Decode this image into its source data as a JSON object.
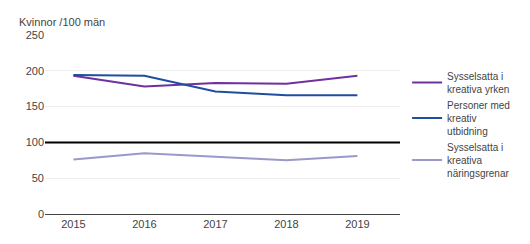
{
  "chart_data": {
    "type": "line",
    "ylabel": "Kvinnor /100 män",
    "x": [
      2015,
      2016,
      2017,
      2018,
      2019
    ],
    "series": [
      {
        "name": "Sysselsatta i\nkreativa yrken",
        "color": "#7030A0",
        "values": [
          193,
          178,
          183,
          182,
          193
        ]
      },
      {
        "name": "Personer med\nkreativ\nutbidning",
        "color": "#1F4E9E",
        "values": [
          194,
          193,
          171,
          166,
          166
        ]
      },
      {
        "name": "Sysselsatta i\nkreativa\nnäringsgrenar",
        "color": "#9999CC",
        "values": [
          76,
          85,
          80,
          75,
          81
        ]
      }
    ],
    "hline": {
      "y": 100,
      "color": "#000000"
    },
    "xlim": [
      2014.6,
      2019.6
    ],
    "xticks": [
      2015,
      2016,
      2017,
      2018,
      2019
    ],
    "ylim": [
      0,
      250
    ],
    "yticks": [
      0,
      50,
      100,
      150,
      200,
      250
    ],
    "grid": true,
    "legend": "right"
  }
}
